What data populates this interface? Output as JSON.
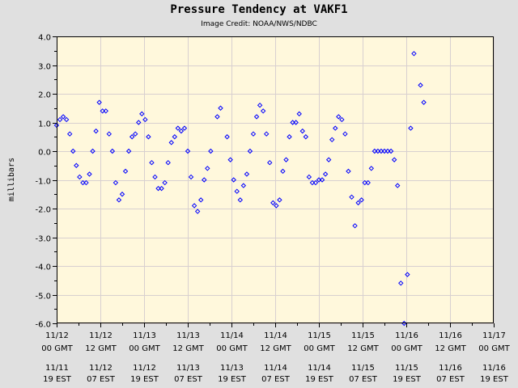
{
  "chart_data": {
    "type": "scatter",
    "title": "Pressure Tendency at VAKF1",
    "subtitle": "Image Credit: NOAA/NWS/NDBC",
    "ylabel": "millibars",
    "ylim": [
      -6.0,
      4.0
    ],
    "yticks": [
      "4.0",
      "3.0",
      "2.0",
      "1.0",
      "0.0",
      "-1.0",
      "-2.0",
      "-3.0",
      "-4.0",
      "-5.0",
      "-6.0"
    ],
    "xlim_hours": [
      0,
      120
    ],
    "xticks": [
      {
        "hour": 0,
        "gmt_date": "11/12",
        "gmt_time": "00 GMT",
        "est_date": "11/11",
        "est_time": "19 EST"
      },
      {
        "hour": 12,
        "gmt_date": "11/12",
        "gmt_time": "12 GMT",
        "est_date": "11/12",
        "est_time": "07 EST"
      },
      {
        "hour": 24,
        "gmt_date": "11/13",
        "gmt_time": "00 GMT",
        "est_date": "11/12",
        "est_time": "19 EST"
      },
      {
        "hour": 36,
        "gmt_date": "11/13",
        "gmt_time": "12 GMT",
        "est_date": "11/13",
        "est_time": "07 EST"
      },
      {
        "hour": 48,
        "gmt_date": "11/14",
        "gmt_time": "00 GMT",
        "est_date": "11/13",
        "est_time": "19 EST"
      },
      {
        "hour": 60,
        "gmt_date": "11/14",
        "gmt_time": "12 GMT",
        "est_date": "11/14",
        "est_time": "07 EST"
      },
      {
        "hour": 72,
        "gmt_date": "11/15",
        "gmt_time": "00 GMT",
        "est_date": "11/14",
        "est_time": "19 EST"
      },
      {
        "hour": 84,
        "gmt_date": "11/15",
        "gmt_time": "12 GMT",
        "est_date": "11/15",
        "est_time": "07 EST"
      },
      {
        "hour": 96,
        "gmt_date": "11/16",
        "gmt_time": "00 GMT",
        "est_date": "11/15",
        "est_time": "19 EST"
      },
      {
        "hour": 108,
        "gmt_date": "11/16",
        "gmt_time": "12 GMT",
        "est_date": "11/16",
        "est_time": "07 EST"
      },
      {
        "hour": 120,
        "gmt_date": "11/17",
        "gmt_time": "00 GMT",
        "est_date": "11/16",
        "est_time": "19 EST"
      }
    ],
    "grid": true,
    "colors": {
      "background": "#fff8dc",
      "points": "#0000ff",
      "grid": "#d8d0d0",
      "page": "#e0e0e0"
    },
    "series": [
      {
        "points": [
          [
            0.0,
            0.9
          ],
          [
            0.9,
            1.1
          ],
          [
            1.8,
            1.2
          ],
          [
            2.7,
            1.1
          ],
          [
            3.6,
            0.6
          ],
          [
            4.5,
            0.0
          ],
          [
            5.4,
            -0.5
          ],
          [
            6.3,
            -0.9
          ],
          [
            7.2,
            -1.1
          ],
          [
            8.1,
            -1.1
          ],
          [
            9.0,
            -0.8
          ],
          [
            9.9,
            0.0
          ],
          [
            10.8,
            0.7
          ],
          [
            11.7,
            1.7
          ],
          [
            12.6,
            1.4
          ],
          [
            13.5,
            1.4
          ],
          [
            14.4,
            0.6
          ],
          [
            15.3,
            0.0
          ],
          [
            16.2,
            -1.1
          ],
          [
            17.1,
            -1.7
          ],
          [
            18.0,
            -1.5
          ],
          [
            18.9,
            -0.7
          ],
          [
            19.8,
            0.0
          ],
          [
            20.7,
            0.5
          ],
          [
            21.6,
            0.6
          ],
          [
            22.5,
            1.0
          ],
          [
            23.4,
            1.3
          ],
          [
            24.3,
            1.1
          ],
          [
            25.2,
            0.5
          ],
          [
            26.1,
            -0.4
          ],
          [
            27.0,
            -0.9
          ],
          [
            27.9,
            -1.3
          ],
          [
            28.8,
            -1.3
          ],
          [
            29.7,
            -1.1
          ],
          [
            30.6,
            -0.4
          ],
          [
            31.5,
            0.3
          ],
          [
            32.4,
            0.5
          ],
          [
            33.3,
            0.8
          ],
          [
            34.2,
            0.7
          ],
          [
            35.1,
            0.8
          ],
          [
            36.0,
            0.0
          ],
          [
            36.9,
            -0.9
          ],
          [
            37.8,
            -1.9
          ],
          [
            38.7,
            -2.1
          ],
          [
            39.6,
            -1.7
          ],
          [
            40.5,
            -1.0
          ],
          [
            41.4,
            -0.6
          ],
          [
            42.3,
            0.0
          ],
          [
            44.1,
            1.2
          ],
          [
            45.0,
            1.5
          ],
          [
            46.8,
            0.5
          ],
          [
            47.7,
            -0.3
          ],
          [
            48.6,
            -1.0
          ],
          [
            49.5,
            -1.4
          ],
          [
            50.4,
            -1.7
          ],
          [
            51.3,
            -1.2
          ],
          [
            52.2,
            -0.8
          ],
          [
            53.1,
            0.0
          ],
          [
            54.0,
            0.6
          ],
          [
            54.9,
            1.2
          ],
          [
            55.8,
            1.6
          ],
          [
            56.7,
            1.4
          ],
          [
            57.6,
            0.6
          ],
          [
            58.5,
            -0.4
          ],
          [
            59.4,
            -1.8
          ],
          [
            60.3,
            -1.9
          ],
          [
            61.2,
            -1.7
          ],
          [
            62.1,
            -0.7
          ],
          [
            63.0,
            -0.3
          ],
          [
            63.9,
            0.5
          ],
          [
            64.8,
            1.0
          ],
          [
            65.7,
            1.0
          ],
          [
            66.6,
            1.3
          ],
          [
            67.5,
            0.7
          ],
          [
            68.4,
            0.5
          ],
          [
            69.3,
            -0.9
          ],
          [
            70.2,
            -1.1
          ],
          [
            71.1,
            -1.1
          ],
          [
            72.0,
            -1.0
          ],
          [
            72.9,
            -1.0
          ],
          [
            73.8,
            -0.8
          ],
          [
            74.7,
            -0.3
          ],
          [
            75.6,
            0.4
          ],
          [
            76.5,
            0.8
          ],
          [
            77.4,
            1.2
          ],
          [
            78.3,
            1.1
          ],
          [
            79.2,
            0.6
          ],
          [
            80.1,
            -0.7
          ],
          [
            81.0,
            -1.6
          ],
          [
            81.9,
            -2.6
          ],
          [
            82.8,
            -1.8
          ],
          [
            83.7,
            -1.7
          ],
          [
            84.6,
            -1.1
          ],
          [
            85.5,
            -1.1
          ],
          [
            86.4,
            -0.6
          ],
          [
            87.3,
            0.0
          ],
          [
            88.2,
            0.0
          ],
          [
            89.1,
            0.0
          ],
          [
            90.0,
            0.0
          ],
          [
            90.9,
            0.0
          ],
          [
            91.8,
            0.0
          ],
          [
            92.7,
            -0.3
          ],
          [
            93.6,
            -1.2
          ],
          [
            94.5,
            -4.6
          ],
          [
            95.4,
            -6.0
          ],
          [
            96.3,
            -4.3
          ],
          [
            97.2,
            0.8
          ],
          [
            98.1,
            3.4
          ],
          [
            99.9,
            2.3
          ],
          [
            100.8,
            1.7
          ]
        ]
      }
    ]
  }
}
